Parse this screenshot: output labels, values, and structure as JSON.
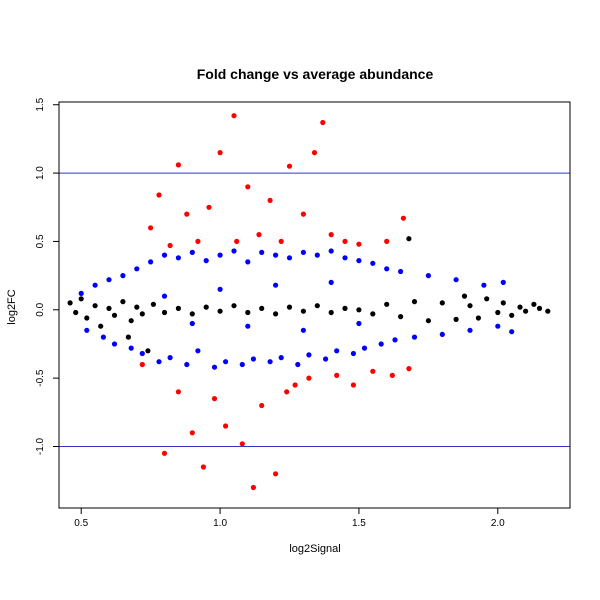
{
  "chart_data": {
    "type": "scatter",
    "title": "Fold change vs average abundance",
    "xlabel": "log2Signal",
    "ylabel": "log2FC",
    "xlim": [
      0.42,
      2.26
    ],
    "ylim": [
      -1.45,
      1.52
    ],
    "x_ticks": [
      "0.5",
      "1.0",
      "1.5",
      "2.0"
    ],
    "y_ticks": [
      "-1.0",
      "-0.5",
      "0.0",
      "0.5",
      "1.0",
      "1.5"
    ],
    "grid": false,
    "reference_lines": [
      {
        "y": 1.0,
        "color": "#3333cc"
      },
      {
        "y": -1.0,
        "color": "#3333cc"
      }
    ],
    "series_colors": {
      "black": "#000000",
      "blue": "#0000ff",
      "red": "#ff0000"
    },
    "series": [
      {
        "color": "black",
        "points": [
          [
            0.46,
            0.05
          ],
          [
            0.48,
            -0.02
          ],
          [
            0.5,
            0.08
          ],
          [
            0.52,
            -0.06
          ],
          [
            0.55,
            0.03
          ],
          [
            0.57,
            -0.12
          ],
          [
            0.6,
            0.01
          ],
          [
            0.62,
            -0.04
          ],
          [
            0.65,
            0.06
          ],
          [
            0.67,
            -0.2
          ],
          [
            0.68,
            -0.08
          ],
          [
            0.7,
            0.02
          ],
          [
            0.72,
            -0.03
          ],
          [
            0.74,
            -0.3
          ],
          [
            0.76,
            0.04
          ],
          [
            0.8,
            -0.02
          ],
          [
            0.85,
            0.01
          ],
          [
            0.9,
            -0.03
          ],
          [
            0.95,
            0.02
          ],
          [
            1.0,
            -0.01
          ],
          [
            1.05,
            0.03
          ],
          [
            1.1,
            -0.02
          ],
          [
            1.15,
            0.01
          ],
          [
            1.2,
            -0.03
          ],
          [
            1.25,
            0.02
          ],
          [
            1.3,
            -0.01
          ],
          [
            1.35,
            0.03
          ],
          [
            1.4,
            -0.02
          ],
          [
            1.45,
            0.01
          ],
          [
            1.5,
            0.0
          ],
          [
            1.55,
            -0.03
          ],
          [
            1.6,
            0.04
          ],
          [
            1.65,
            -0.05
          ],
          [
            1.68,
            0.52
          ],
          [
            1.7,
            0.06
          ],
          [
            1.75,
            -0.08
          ],
          [
            1.8,
            0.05
          ],
          [
            1.85,
            -0.07
          ],
          [
            1.88,
            0.1
          ],
          [
            1.9,
            0.03
          ],
          [
            1.93,
            -0.06
          ],
          [
            1.96,
            0.08
          ],
          [
            2.0,
            -0.02
          ],
          [
            2.02,
            0.05
          ],
          [
            2.05,
            -0.04
          ],
          [
            2.08,
            0.02
          ],
          [
            2.1,
            -0.01
          ],
          [
            2.13,
            0.04
          ],
          [
            2.15,
            0.01
          ],
          [
            2.18,
            -0.01
          ]
        ]
      },
      {
        "color": "blue",
        "points": [
          [
            0.5,
            0.12
          ],
          [
            0.52,
            -0.15
          ],
          [
            0.55,
            0.18
          ],
          [
            0.58,
            -0.2
          ],
          [
            0.6,
            0.22
          ],
          [
            0.62,
            -0.25
          ],
          [
            0.65,
            0.25
          ],
          [
            0.68,
            -0.28
          ],
          [
            0.7,
            0.3
          ],
          [
            0.72,
            -0.32
          ],
          [
            0.75,
            0.35
          ],
          [
            0.78,
            -0.38
          ],
          [
            0.8,
            0.4
          ],
          [
            0.82,
            -0.35
          ],
          [
            0.85,
            0.38
          ],
          [
            0.88,
            -0.4
          ],
          [
            0.9,
            0.42
          ],
          [
            0.92,
            -0.3
          ],
          [
            0.95,
            0.36
          ],
          [
            0.98,
            -0.42
          ],
          [
            1.0,
            0.4
          ],
          [
            1.02,
            -0.38
          ],
          [
            1.05,
            0.43
          ],
          [
            1.08,
            -0.4
          ],
          [
            1.1,
            0.35
          ],
          [
            1.12,
            -0.36
          ],
          [
            1.15,
            0.42
          ],
          [
            1.18,
            -0.38
          ],
          [
            1.2,
            0.4
          ],
          [
            1.22,
            -0.35
          ],
          [
            1.25,
            0.38
          ],
          [
            1.28,
            -0.4
          ],
          [
            1.3,
            0.42
          ],
          [
            1.32,
            -0.33
          ],
          [
            1.35,
            0.4
          ],
          [
            1.38,
            -0.36
          ],
          [
            1.4,
            0.43
          ],
          [
            1.42,
            -0.3
          ],
          [
            1.45,
            0.38
          ],
          [
            1.48,
            -0.32
          ],
          [
            1.5,
            0.36
          ],
          [
            1.52,
            -0.28
          ],
          [
            1.55,
            0.34
          ],
          [
            1.58,
            -0.25
          ],
          [
            1.6,
            0.3
          ],
          [
            1.63,
            -0.22
          ],
          [
            1.65,
            0.28
          ],
          [
            1.7,
            -0.2
          ],
          [
            1.75,
            0.25
          ],
          [
            1.8,
            -0.18
          ],
          [
            1.85,
            0.22
          ],
          [
            1.9,
            -0.15
          ],
          [
            1.95,
            0.18
          ],
          [
            2.0,
            -0.12
          ],
          [
            2.02,
            0.2
          ],
          [
            2.05,
            -0.16
          ],
          [
            1.0,
            0.15
          ],
          [
            1.1,
            -0.12
          ],
          [
            1.2,
            0.18
          ],
          [
            1.3,
            -0.15
          ],
          [
            1.4,
            0.2
          ],
          [
            1.5,
            -0.1
          ],
          [
            0.8,
            0.1
          ],
          [
            0.9,
            -0.1
          ]
        ]
      },
      {
        "color": "red",
        "points": [
          [
            0.72,
            -0.4
          ],
          [
            0.75,
            0.6
          ],
          [
            0.78,
            0.84
          ],
          [
            0.8,
            -1.05
          ],
          [
            0.82,
            0.47
          ],
          [
            0.85,
            -0.6
          ],
          [
            0.85,
            1.06
          ],
          [
            0.88,
            0.7
          ],
          [
            0.9,
            -0.9
          ],
          [
            0.92,
            0.5
          ],
          [
            0.94,
            -1.15
          ],
          [
            0.96,
            0.75
          ],
          [
            0.98,
            -0.65
          ],
          [
            1.0,
            1.15
          ],
          [
            1.02,
            -0.85
          ],
          [
            1.05,
            1.42
          ],
          [
            1.06,
            0.5
          ],
          [
            1.08,
            -0.98
          ],
          [
            1.1,
            0.9
          ],
          [
            1.12,
            -1.3
          ],
          [
            1.14,
            0.55
          ],
          [
            1.15,
            -0.7
          ],
          [
            1.18,
            0.8
          ],
          [
            1.2,
            -1.2
          ],
          [
            1.22,
            0.5
          ],
          [
            1.24,
            -0.6
          ],
          [
            1.25,
            1.05
          ],
          [
            1.27,
            -0.55
          ],
          [
            1.3,
            0.7
          ],
          [
            1.32,
            -0.5
          ],
          [
            1.34,
            1.15
          ],
          [
            1.37,
            1.37
          ],
          [
            1.4,
            0.55
          ],
          [
            1.42,
            -0.48
          ],
          [
            1.45,
            0.5
          ],
          [
            1.48,
            -0.55
          ],
          [
            1.5,
            0.48
          ],
          [
            1.55,
            -0.45
          ],
          [
            1.6,
            0.5
          ],
          [
            1.62,
            -0.48
          ],
          [
            1.66,
            0.67
          ],
          [
            1.68,
            -0.43
          ]
        ]
      }
    ]
  }
}
